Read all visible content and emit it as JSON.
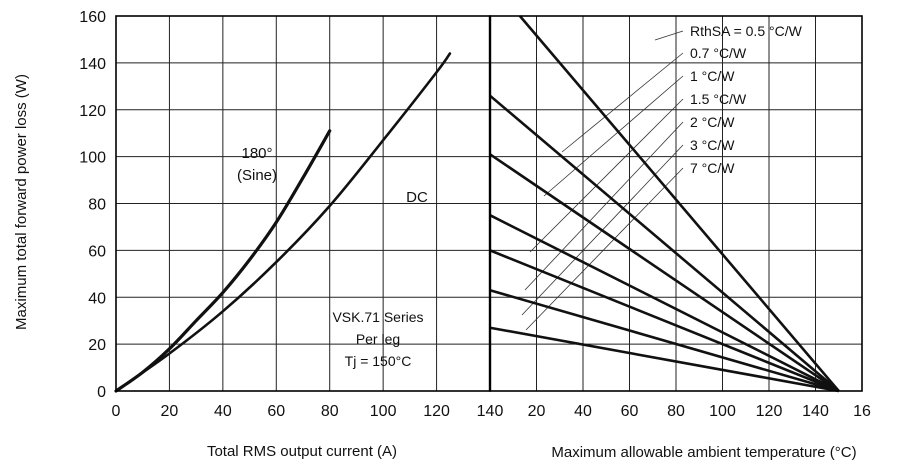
{
  "chart_data": [
    {
      "type": "line",
      "xlabel": "Total RMS output current (A)",
      "ylabel": "Maximum total forward power loss (W)",
      "xlim": [
        0,
        140
      ],
      "ylim": [
        0,
        160
      ],
      "x_ticks": [
        "0",
        "20",
        "40",
        "60",
        "80",
        "100",
        "120",
        "140"
      ],
      "y_ticks": [
        "0",
        "20",
        "40",
        "60",
        "80",
        "100",
        "120",
        "140",
        "160"
      ],
      "grid": true,
      "series": [
        {
          "name": "180° (Sine)",
          "x": [
            0,
            10,
            20,
            30,
            40,
            50,
            60,
            70,
            80
          ],
          "y": [
            0,
            8,
            18,
            30,
            42,
            56,
            72,
            91,
            111
          ]
        },
        {
          "name": "DC",
          "x": [
            0,
            20,
            40,
            60,
            80,
            100,
            120,
            125
          ],
          "y": [
            0,
            16,
            34,
            55,
            79,
            107,
            136,
            144
          ]
        }
      ],
      "annotations": {
        "sine_line1": "180°",
        "sine_line2": "(Sine)",
        "dc": "DC",
        "note_line1": "VSK.71 Series",
        "note_line2": "Per leg",
        "note_line3": "Tj = 150°C"
      }
    },
    {
      "type": "line",
      "xlabel": "Maximum allowable ambient temperature (°C)",
      "xlim": [
        0,
        160
      ],
      "ylim": [
        0,
        160
      ],
      "x_ticks": [
        "20",
        "40",
        "60",
        "80",
        "100",
        "120",
        "140",
        "16"
      ],
      "grid": true,
      "series": [
        {
          "name": "RthSA = 0.5 °C/W",
          "x": [
            0,
            150
          ],
          "y": [
            175,
            0
          ]
        },
        {
          "name": "0.7 °C/W",
          "x": [
            0,
            150
          ],
          "y": [
            126,
            0
          ]
        },
        {
          "name": "1 °C/W",
          "x": [
            0,
            150
          ],
          "y": [
            101,
            0
          ]
        },
        {
          "name": "1.5 °C/W",
          "x": [
            0,
            150
          ],
          "y": [
            75,
            0
          ]
        },
        {
          "name": "2 °C/W",
          "x": [
            0,
            150
          ],
          "y": [
            60,
            0
          ]
        },
        {
          "name": "3 °C/W",
          "x": [
            0,
            150
          ],
          "y": [
            43,
            0
          ]
        },
        {
          "name": "7 °C/W",
          "x": [
            0,
            150
          ],
          "y": [
            27,
            0
          ]
        }
      ]
    }
  ]
}
